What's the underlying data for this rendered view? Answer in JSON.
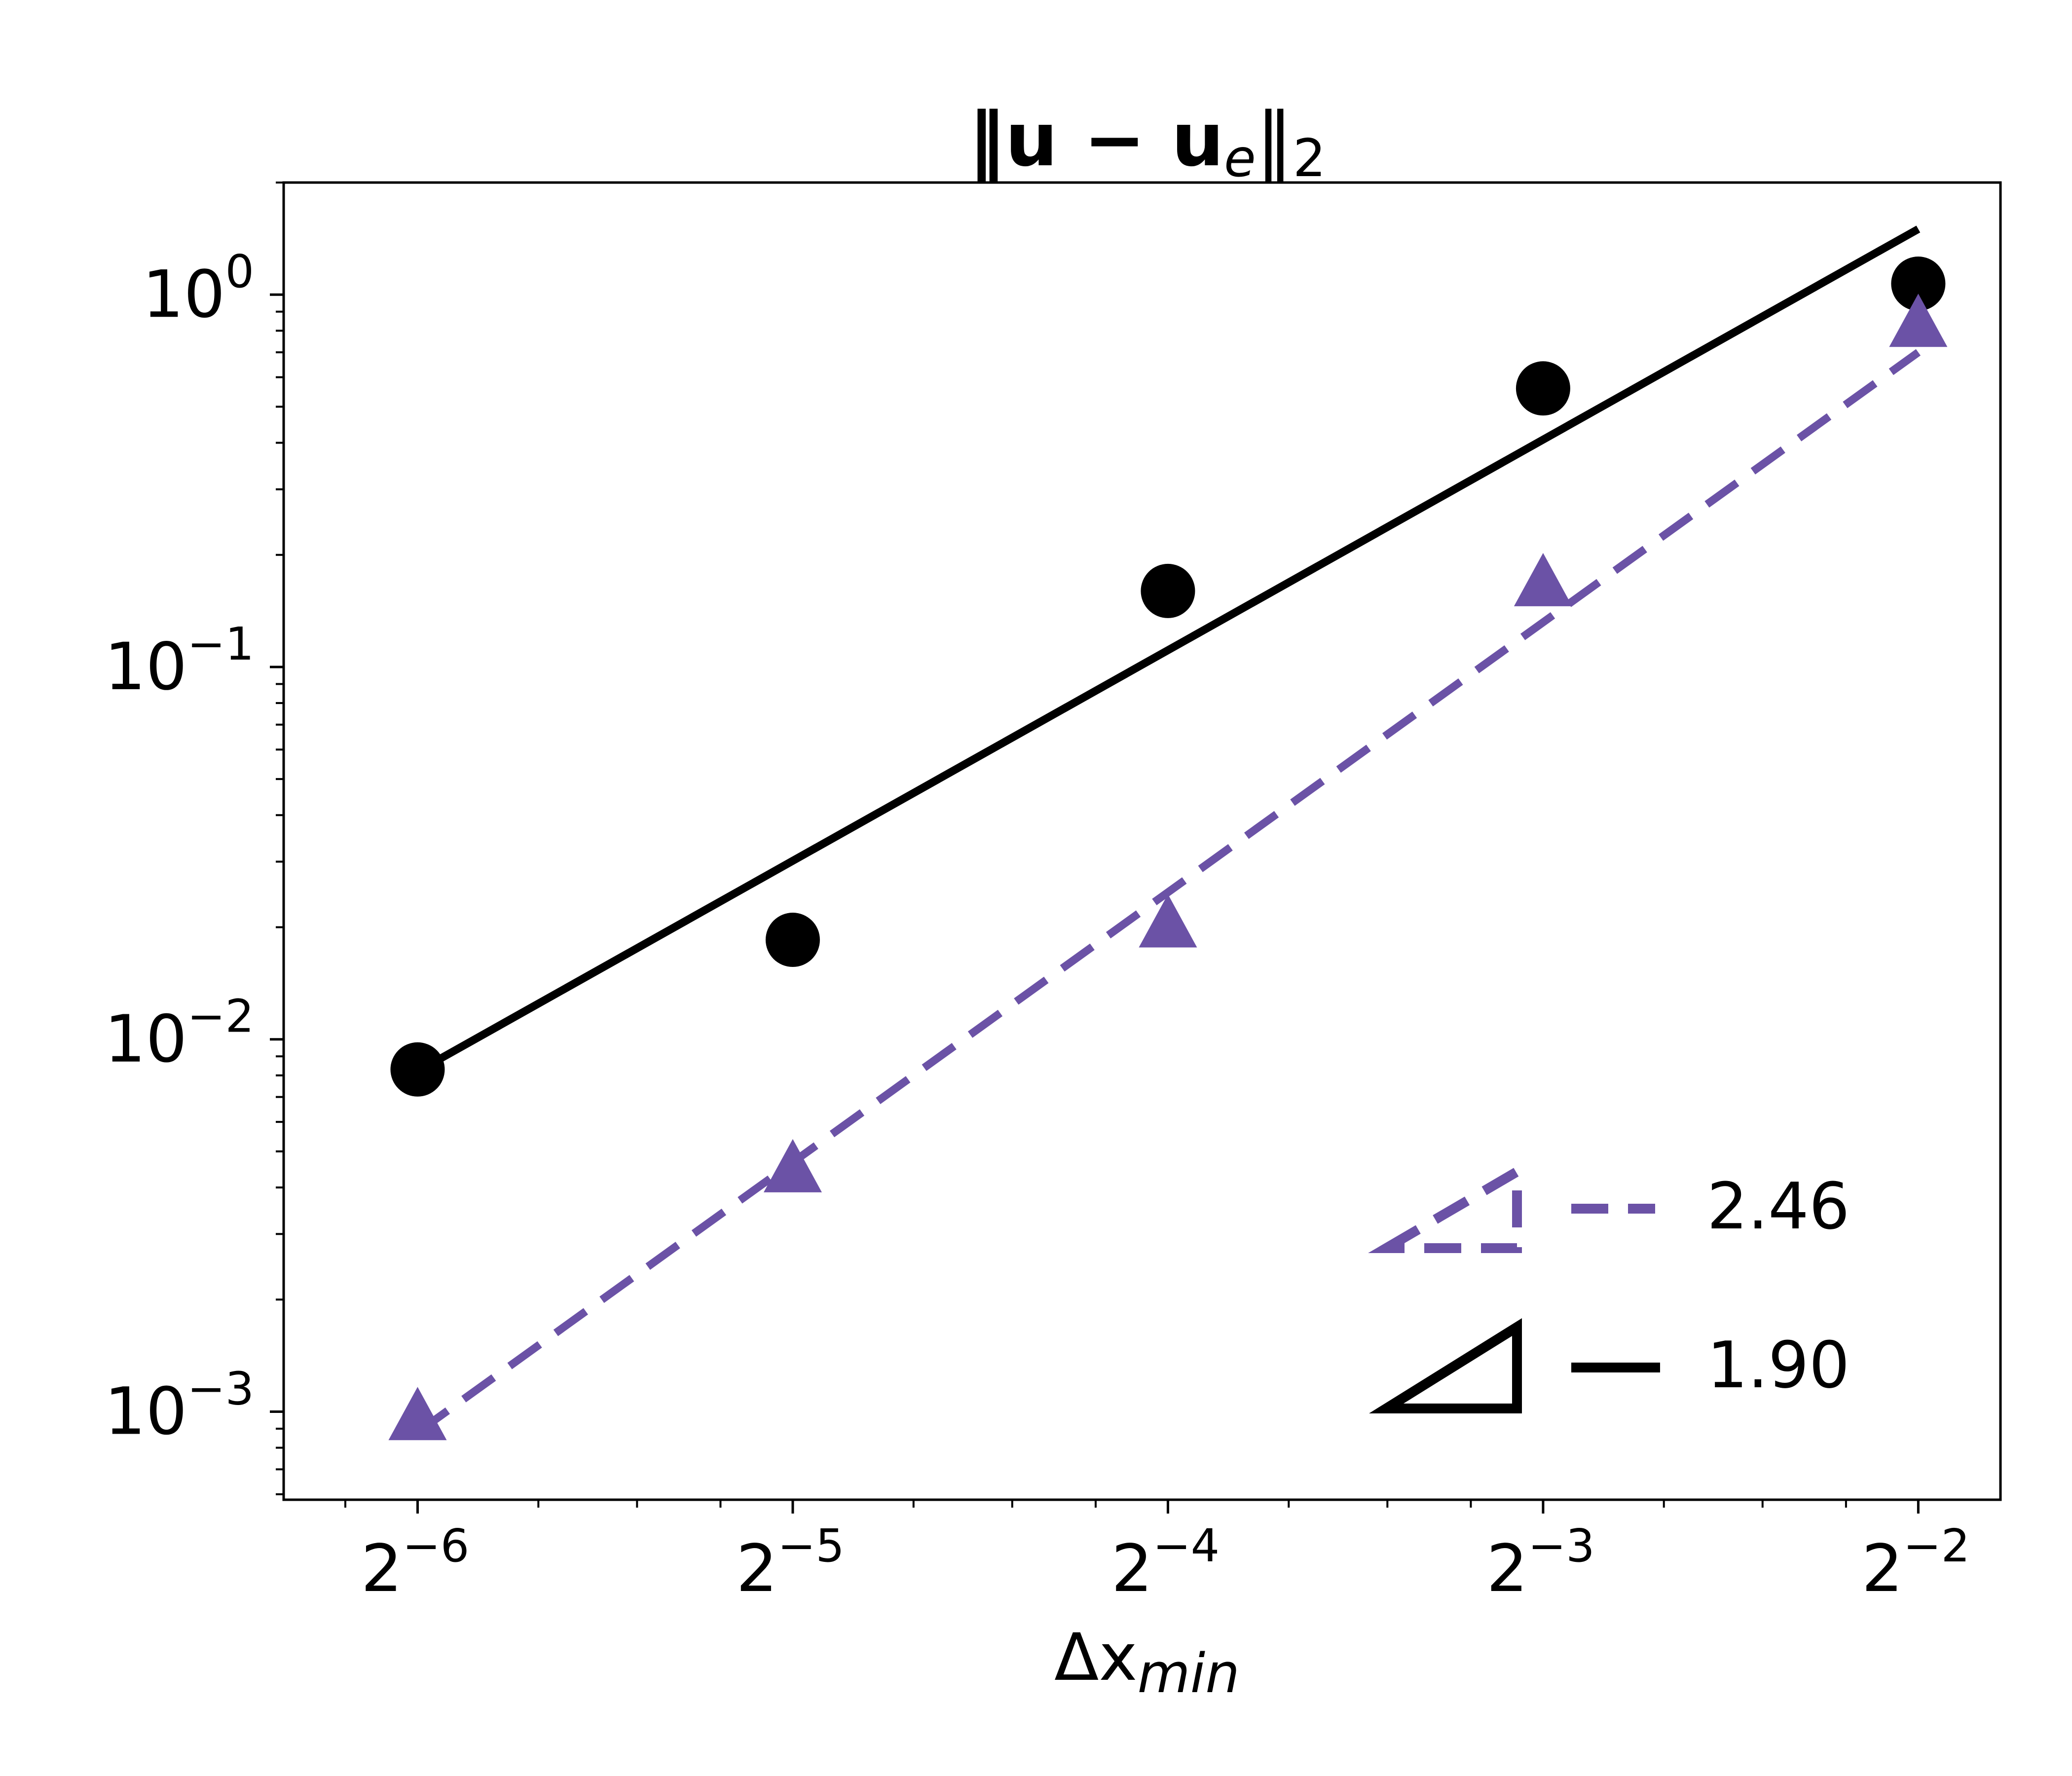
{
  "chart_data": {
    "type": "scatter",
    "title": {
      "main": "‖u − u",
      "sub": "e",
      "tail": "‖",
      "norm_index": "2"
    },
    "xlabel": {
      "main": "Δx",
      "sub": "min"
    },
    "ylabel": "",
    "x_scale": "log2",
    "y_scale": "log10",
    "xlim": [
      0.0122,
      0.291
    ],
    "ylim": [
      0.00058,
      2.0
    ],
    "x_ticks": [
      {
        "value": 0.015625,
        "base": "2",
        "exp": "−6"
      },
      {
        "value": 0.03125,
        "base": "2",
        "exp": "−5"
      },
      {
        "value": 0.0625,
        "base": "2",
        "exp": "−4"
      },
      {
        "value": 0.125,
        "base": "2",
        "exp": "−3"
      },
      {
        "value": 0.25,
        "base": "2",
        "exp": "−2"
      }
    ],
    "y_ticks": [
      {
        "value": 0.001,
        "base": "10",
        "exp": "−3"
      },
      {
        "value": 0.01,
        "base": "10",
        "exp": "−2"
      },
      {
        "value": 0.1,
        "base": "10",
        "exp": "−1"
      },
      {
        "value": 1,
        "base": "10",
        "exp": "0"
      }
    ],
    "grid": false,
    "legend_position": "bottom-right",
    "series": [
      {
        "marker": "circle",
        "color": "#000000",
        "x": [
          0.015625,
          0.03125,
          0.0625,
          0.125,
          0.25
        ],
        "y": [
          0.0083,
          0.0185,
          0.16,
          0.56,
          1.07
        ]
      },
      {
        "marker": "triangle",
        "color": "#6b52a6",
        "x": [
          0.015625,
          0.03125,
          0.0625,
          0.125,
          0.25
        ],
        "y": [
          0.00095,
          0.0044,
          0.02,
          0.165,
          0.82
        ]
      }
    ],
    "fits": [
      {
        "label": "1.90",
        "slope": 1.9,
        "color": "#000000",
        "dash": "solid",
        "x": [
          0.015625,
          0.25
        ],
        "y": [
          0.0082,
          1.5
        ]
      },
      {
        "label": "2.46",
        "slope": 2.46,
        "color": "#6b52a6",
        "dash": "dashed",
        "x": [
          0.015625,
          0.25
        ],
        "y": [
          0.00088,
          0.7
        ]
      }
    ],
    "legend": [
      {
        "label": "2.46",
        "color": "#6b52a6",
        "dash": "dashed"
      },
      {
        "label": "1.90",
        "color": "#000000",
        "dash": "solid"
      }
    ]
  }
}
